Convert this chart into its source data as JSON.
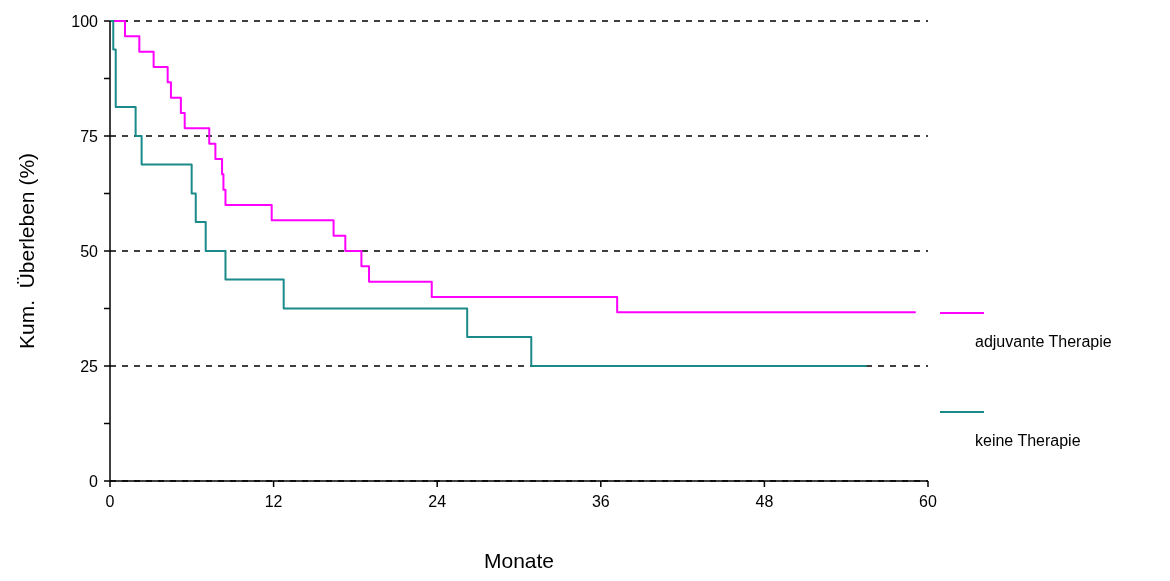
{
  "chart_data": {
    "type": "step",
    "xlabel": "Monate",
    "ylabel": "Kum.  Überleben (%)",
    "xlim": [
      0,
      60
    ],
    "xticks": [
      0,
      12,
      24,
      36,
      48,
      60
    ],
    "ylim": [
      0,
      100
    ],
    "yticks": [
      0,
      {
        "value": 12.5,
        "label": null
      },
      25,
      {
        "value": 37.5,
        "label": null
      },
      50,
      {
        "value": 62.5,
        "label": null
      },
      75,
      {
        "value": 87.5,
        "label": null
      },
      100
    ],
    "grid": "y",
    "legend": "right",
    "line_style": "solid",
    "marker": "none",
    "series": [
      {
        "name": "adjuvante Therapie",
        "color": "#ff00ff",
        "x": [
          0,
          1.1,
          2.15,
          3.2,
          4.23,
          4.47,
          5.2,
          5.48,
          7.28,
          7.73,
          8.22,
          8.32,
          8.47,
          11.86,
          16.4,
          17.26,
          18.44,
          19.0,
          23.6,
          37.2,
          59.1
        ],
        "values": [
          100,
          96.7,
          93.3,
          90,
          86.7,
          83.3,
          80,
          76.7,
          73.3,
          70,
          66.7,
          63.3,
          60,
          56.7,
          53.3,
          50,
          46.7,
          43.3,
          40,
          36.7,
          36.7
        ]
      },
      {
        "name": "keine Therapie",
        "color": "#1a8a8a",
        "x": [
          0,
          0.24,
          0.42,
          1.88,
          2.32,
          5.99,
          6.29,
          7.02,
          8.47,
          12.74,
          26.2,
          30.9,
          55.5
        ],
        "values": [
          100,
          93.8,
          81.3,
          75,
          68.8,
          62.5,
          56.3,
          50,
          43.8,
          37.5,
          31.3,
          25,
          25
        ]
      }
    ]
  }
}
